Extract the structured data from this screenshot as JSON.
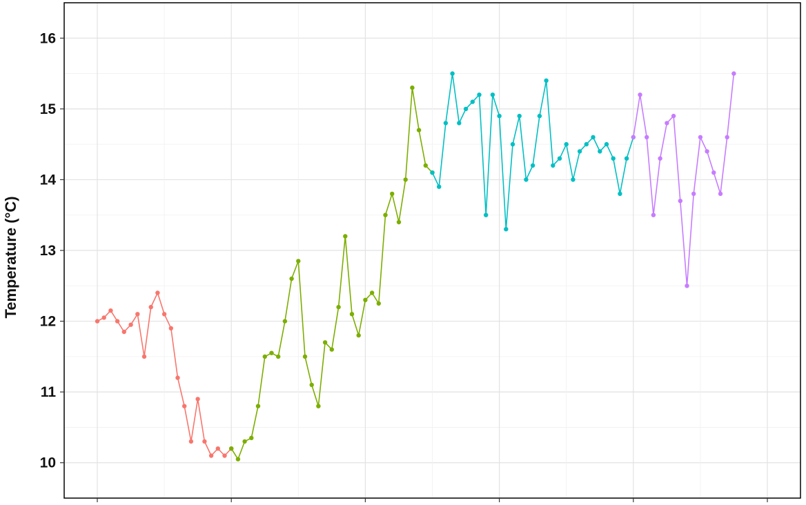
{
  "chart_data": {
    "type": "line",
    "title": "",
    "xlabel": "",
    "ylabel": "Temperature (°C)",
    "ylim": [
      9.5,
      16.5
    ],
    "yticks": [
      10,
      11,
      12,
      13,
      14,
      15,
      16
    ],
    "xlim": [
      0,
      1000
    ],
    "x_tick_labels_visible": false,
    "grid": true,
    "legend": "none",
    "markers": true,
    "series": [
      {
        "color": "#F8766D",
        "x": [
          0,
          10,
          20,
          30,
          40,
          50,
          60,
          70,
          80,
          90,
          100,
          110,
          120,
          130,
          140,
          150,
          160,
          170,
          180,
          190,
          200
        ],
        "values": [
          12.0,
          12.05,
          12.15,
          12.0,
          11.85,
          11.95,
          12.1,
          11.5,
          12.2,
          12.4,
          12.1,
          11.9,
          11.2,
          10.8,
          10.3,
          10.9,
          10.3,
          10.1,
          10.2,
          10.1,
          10.2
        ]
      },
      {
        "color": "#7CAE00",
        "x": [
          200,
          210,
          220,
          230,
          240,
          250,
          260,
          270,
          280,
          290,
          300,
          310,
          320,
          330,
          340,
          350,
          360,
          370,
          380,
          390,
          400,
          410,
          420,
          430,
          440,
          450,
          460,
          470,
          480,
          490,
          500
        ],
        "values": [
          10.2,
          10.05,
          10.3,
          10.35,
          10.8,
          11.5,
          11.55,
          11.5,
          12.0,
          12.6,
          12.85,
          11.5,
          11.1,
          10.8,
          11.7,
          11.6,
          12.2,
          13.2,
          12.1,
          11.8,
          12.3,
          12.4,
          12.25,
          13.5,
          13.8,
          13.4,
          14.0,
          15.3,
          14.7,
          14.2,
          14.1
        ]
      },
      {
        "color": "#00BFC4",
        "x": [
          500,
          510,
          520,
          530,
          540,
          550,
          560,
          570,
          580,
          590,
          600,
          610,
          620,
          630,
          640,
          650,
          660,
          670,
          680,
          690,
          700,
          710,
          720,
          730,
          740,
          750,
          760,
          770,
          780,
          790,
          800
        ],
        "values": [
          14.1,
          13.9,
          14.8,
          15.5,
          14.8,
          15.0,
          15.1,
          15.2,
          13.5,
          15.2,
          14.9,
          13.3,
          14.5,
          14.9,
          14.0,
          14.2,
          14.9,
          15.4,
          14.2,
          14.3,
          14.5,
          14.0,
          14.4,
          14.5,
          14.6,
          14.4,
          14.5,
          14.3,
          13.8,
          14.3,
          14.6
        ]
      },
      {
        "color": "#C77CFF",
        "x": [
          800,
          810,
          820,
          830,
          840,
          850,
          860,
          870,
          880,
          890,
          900,
          910,
          920,
          930,
          940,
          950
        ],
        "values": [
          14.6,
          15.2,
          14.6,
          13.5,
          14.3,
          14.8,
          14.9,
          13.7,
          12.5,
          13.8,
          14.6,
          14.4,
          14.1,
          13.8,
          14.6,
          15.5
        ]
      }
    ]
  }
}
